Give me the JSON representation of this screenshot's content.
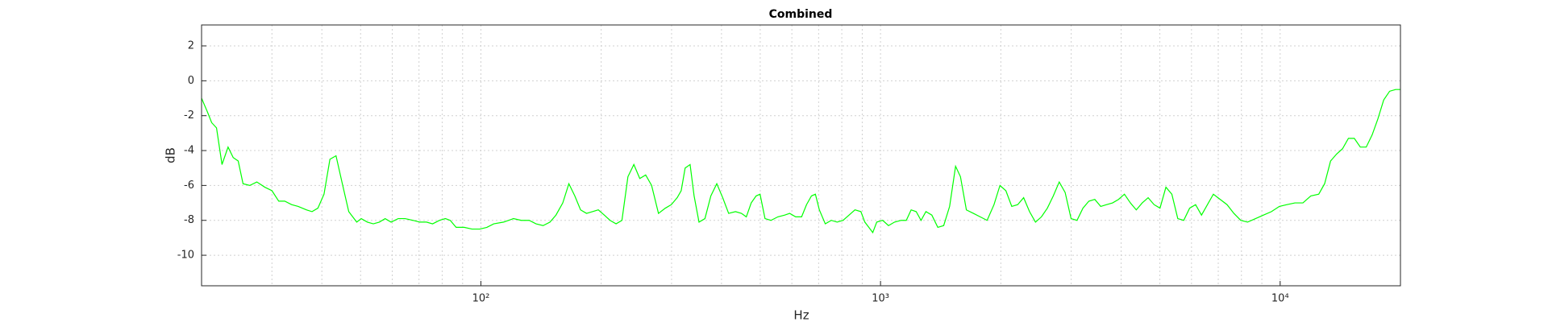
{
  "chart_data": {
    "type": "line",
    "title": "Combined",
    "x_label": "Hz",
    "y_label": "dB",
    "xscale": "log",
    "grid": true,
    "xlim": [
      20,
      20000
    ],
    "ylim": [
      -11.75,
      3.2
    ],
    "xticks": [
      {
        "value": 100,
        "label": "10²"
      },
      {
        "value": 1000,
        "label": "10³"
      },
      {
        "value": 10000,
        "label": "10⁴"
      }
    ],
    "x_minor_ticks": [
      30,
      40,
      50,
      60,
      70,
      80,
      90,
      200,
      300,
      400,
      500,
      600,
      700,
      800,
      900,
      2000,
      3000,
      4000,
      5000,
      6000,
      7000,
      8000,
      9000
    ],
    "yticks": [
      -10,
      -8,
      -6,
      -4,
      -2,
      0,
      2
    ],
    "x": [
      20,
      20.7,
      21.2,
      21.8,
      22.5,
      23.3,
      24.0,
      24.7,
      25.4,
      26.4,
      27.5,
      28.8,
      30.0,
      31.2,
      32.3,
      33.6,
      34.9,
      36.6,
      37.8,
      39.1,
      40.5,
      41.9,
      43.4,
      44.9,
      46.7,
      48.9,
      50.2,
      52.0,
      53.8,
      55.7,
      57.6,
      59.6,
      62.1,
      64.6,
      67.6,
      70.3,
      73.1,
      75.7,
      78.8,
      81.5,
      83.8,
      86.7,
      90.8,
      95.0,
      99.4,
      103.5,
      107.7,
      114.0,
      120.6,
      126.2,
      132.1,
      137.4,
      143.1,
      148.9,
      154.1,
      160.3,
      166.0,
      171.8,
      177.6,
      183.8,
      190.1,
      196.7,
      203.6,
      210.5,
      217.9,
      225.4,
      233.3,
      241.4,
      249.8,
      258.4,
      267.4,
      278.2,
      289.5,
      299.6,
      309.9,
      317.1,
      324.4,
      333.8,
      341.6,
      351.4,
      363.6,
      376.2,
      389.3,
      402.8,
      416.8,
      433.6,
      448.7,
      461.5,
      474.7,
      488.3,
      499.5,
      514.0,
      531.9,
      553.4,
      575.8,
      592.6,
      613.3,
      634.6,
      652.9,
      671.7,
      687.1,
      703.0,
      727.4,
      752.8,
      778.9,
      806.0,
      834.1,
      863.1,
      893.1,
      913.7,
      934.8,
      956.3,
      978.4,
      1012,
      1047,
      1084,
      1127,
      1160,
      1193,
      1228,
      1263,
      1299,
      1344,
      1391,
      1439,
      1489,
      1541,
      1585,
      1640,
      1708,
      1776,
      1848,
      1923,
      1990,
      2059,
      2130,
      2204,
      2281,
      2360,
      2442,
      2527,
      2615,
      2706,
      2800,
      2897,
      2998,
      3102,
      3210,
      3322,
      3437,
      3556,
      3680,
      3808,
      3940,
      4077,
      4219,
      4365,
      4517,
      4674,
      4836,
      5004,
      5178,
      5358,
      5544,
      5737,
      5936,
      6143,
      6356,
      6577,
      6806,
      7080,
      7364,
      7660,
      7967,
      8288,
      8677,
      9084,
      9510,
      9955,
      10400,
      10890,
      11400,
      11930,
      12490,
      12920,
      13370,
      13840,
      14320,
      14820,
      15330,
      15870,
      16420,
      16990,
      17550,
      18160,
      18790,
      19450,
      20000
    ],
    "series": [
      {
        "color": "#00ff00",
        "values": [
          -1.0,
          -1.8,
          -2.4,
          -2.7,
          -4.8,
          -3.8,
          -4.4,
          -4.6,
          -5.9,
          -6.0,
          -5.8,
          -6.1,
          -6.3,
          -6.9,
          -6.9,
          -7.1,
          -7.2,
          -7.4,
          -7.5,
          -7.3,
          -6.5,
          -4.5,
          -4.3,
          -5.8,
          -7.5,
          -8.1,
          -7.9,
          -8.1,
          -8.2,
          -8.1,
          -7.9,
          -8.1,
          -7.9,
          -7.9,
          -8.0,
          -8.1,
          -8.1,
          -8.2,
          -8.0,
          -7.9,
          -8.0,
          -8.4,
          -8.4,
          -8.5,
          -8.5,
          -8.4,
          -8.2,
          -8.1,
          -7.9,
          -8.0,
          -8.0,
          -8.2,
          -8.3,
          -8.1,
          -7.7,
          -7.0,
          -5.9,
          -6.6,
          -7.4,
          -7.6,
          -7.5,
          -7.4,
          -7.7,
          -8.0,
          -8.2,
          -8.0,
          -5.5,
          -4.8,
          -5.6,
          -5.4,
          -6.0,
          -7.6,
          -7.3,
          -7.1,
          -6.7,
          -6.3,
          -5.0,
          -4.8,
          -6.6,
          -8.1,
          -7.9,
          -6.6,
          -5.9,
          -6.7,
          -7.6,
          -7.5,
          -7.6,
          -7.8,
          -7.0,
          -6.6,
          -6.5,
          -7.9,
          -8.0,
          -7.8,
          -7.7,
          -7.6,
          -7.8,
          -7.8,
          -7.1,
          -6.6,
          -6.5,
          -7.4,
          -8.2,
          -8.0,
          -8.1,
          -8.0,
          -7.7,
          -7.4,
          -7.5,
          -8.1,
          -8.4,
          -8.7,
          -8.1,
          -8.0,
          -8.3,
          -8.1,
          -8.0,
          -8.0,
          -7.4,
          -7.5,
          -8.0,
          -7.5,
          -7.7,
          -8.4,
          -8.3,
          -7.2,
          -4.9,
          -5.5,
          -7.4,
          -7.6,
          -7.8,
          -8.0,
          -7.1,
          -6.0,
          -6.3,
          -7.2,
          -7.1,
          -6.7,
          -7.5,
          -8.1,
          -7.8,
          -7.3,
          -6.6,
          -5.8,
          -6.4,
          -7.9,
          -8.0,
          -7.3,
          -6.9,
          -6.8,
          -7.2,
          -7.1,
          -7.0,
          -6.8,
          -6.5,
          -7.0,
          -7.4,
          -7.0,
          -6.7,
          -7.1,
          -7.3,
          -6.1,
          -6.5,
          -7.9,
          -8.0,
          -7.3,
          -7.1,
          -7.7,
          -7.1,
          -6.5,
          -6.8,
          -7.1,
          -7.6,
          -8.0,
          -8.1,
          -7.9,
          -7.7,
          -7.5,
          -7.2,
          -7.1,
          -7.0,
          -7.0,
          -6.6,
          -6.5,
          -5.9,
          -4.6,
          -4.2,
          -3.9,
          -3.3,
          -3.3,
          -3.8,
          -3.8,
          -3.1,
          -2.2,
          -1.1,
          -0.6,
          -0.5,
          -0.5
        ]
      }
    ]
  }
}
